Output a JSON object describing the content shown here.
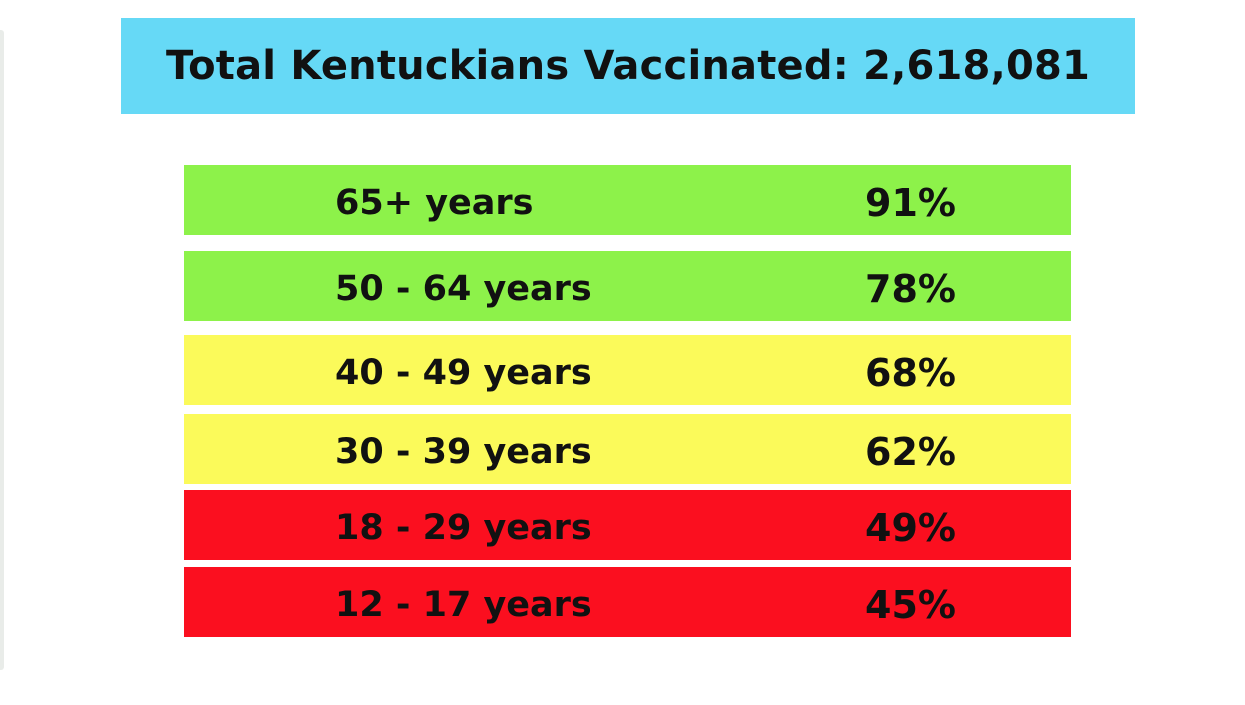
{
  "header": {
    "title": "Total Kentuckians Vaccinated: 2,618,081"
  },
  "table": {
    "rows": [
      {
        "label": "65+ years",
        "value": "91%",
        "color": "#8df24a"
      },
      {
        "label": "50 - 64 years",
        "value": "78%",
        "color": "#8df24a"
      },
      {
        "label": "40 - 49 years",
        "value": "68%",
        "color": "#fbfa5a"
      },
      {
        "label": "30 - 39 years",
        "value": "62%",
        "color": "#fbfa5a"
      },
      {
        "label": "18 - 29 years",
        "value": "49%",
        "color": "#fb0f1f"
      },
      {
        "label": "12 - 17 years",
        "value": "45%",
        "color": "#fb0f1f"
      }
    ]
  },
  "colors": {
    "banner": "#66d9f6",
    "high": "#8df24a",
    "medium": "#fbfa5a",
    "low": "#fb0f1f"
  }
}
